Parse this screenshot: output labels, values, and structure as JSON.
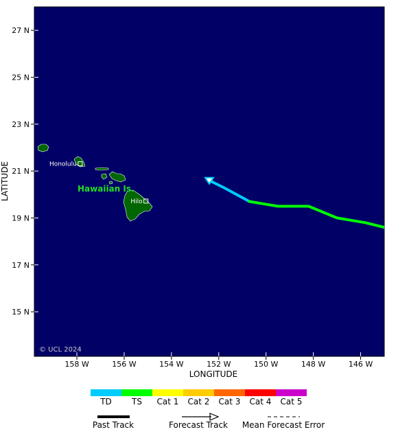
{
  "map": {
    "xlabel": "LONGITUDE",
    "ylabel": "LATITUDE",
    "lon_range": [
      -159.8,
      -145.0
    ],
    "lat_range": [
      13.1,
      28.0
    ],
    "lon_ticks": [
      "158 W",
      "156 W",
      "154 W",
      "152 W",
      "150 W",
      "148 W",
      "146 W"
    ],
    "lat_ticks": [
      "27 N",
      "25 N",
      "23 N",
      "21 N",
      "19 N",
      "17 N",
      "15 N"
    ],
    "ocean_color": "#000066",
    "land_color": "#006600",
    "copyright": "© UCL 2024",
    "region_label": "Hawaiian Is.",
    "cities": [
      {
        "name": "Honolulu",
        "lon": -157.86,
        "lat": 21.31
      },
      {
        "name": "Hilo",
        "lon": -155.08,
        "lat": 19.72
      }
    ]
  },
  "track": {
    "start_marker": {
      "lon": -152.4,
      "lat": 20.6,
      "category": "TD"
    },
    "segments": [
      {
        "category": "TD",
        "points": [
          [
            -152.4,
            20.6
          ],
          [
            -151.8,
            20.3
          ],
          [
            -150.7,
            19.7
          ]
        ]
      },
      {
        "category": "TS",
        "points": [
          [
            -150.7,
            19.7
          ],
          [
            -149.5,
            19.5
          ],
          [
            -148.2,
            19.5
          ],
          [
            -147.0,
            19.0
          ],
          [
            -145.8,
            18.8
          ],
          [
            -145.0,
            18.6
          ]
        ]
      }
    ]
  },
  "legend": {
    "categories": [
      {
        "label": "TD",
        "color": "#00ccff"
      },
      {
        "label": "TS",
        "color": "#00ff00"
      },
      {
        "label": "Cat 1",
        "color": "#ffff00"
      },
      {
        "label": "Cat 2",
        "color": "#ffcc00"
      },
      {
        "label": "Cat 3",
        "color": "#ff6600"
      },
      {
        "label": "Cat 4",
        "color": "#ff0000"
      },
      {
        "label": "Cat 5",
        "color": "#cc00cc"
      }
    ],
    "past_track": "Past Track",
    "forecast_track": "Forecast Track",
    "mean_error": "Mean Forecast Error"
  }
}
